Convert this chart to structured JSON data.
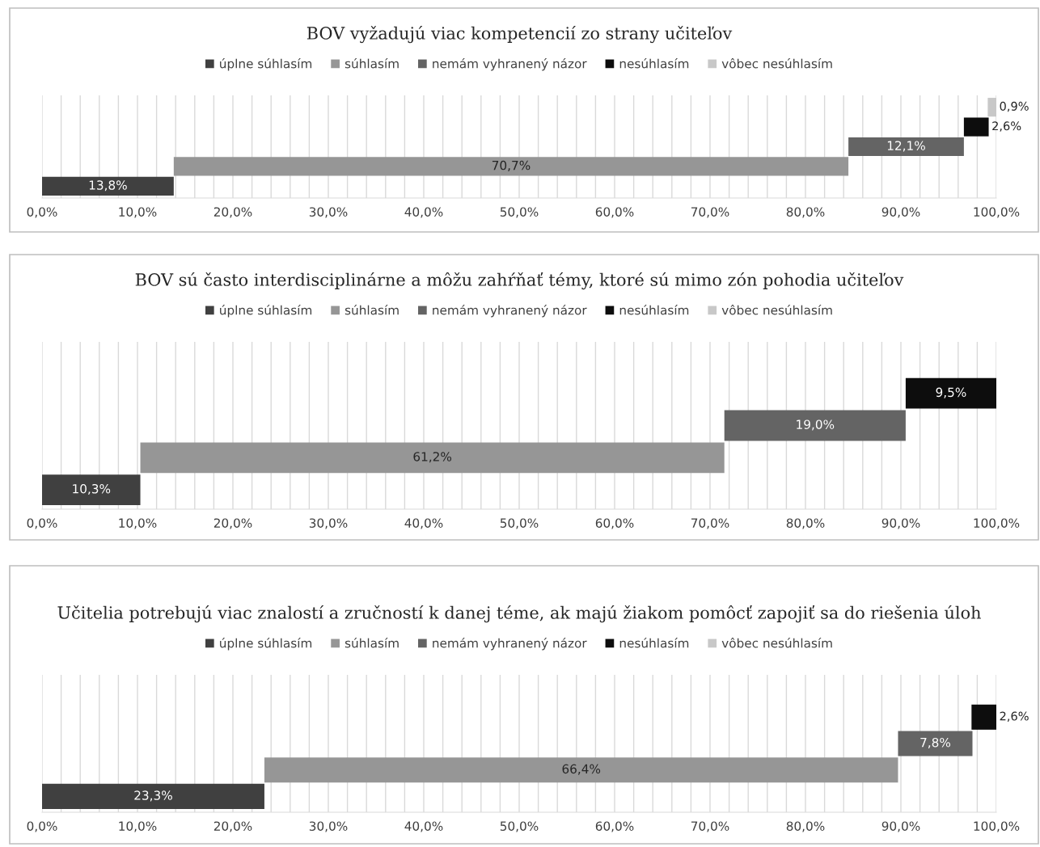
{
  "chart_data": [
    {
      "type": "bar",
      "orientation": "horizontal",
      "title": "BOV vyžadujú viac kompetencií zo strany učiteľov",
      "categories": [
        null,
        null,
        null,
        null,
        null
      ],
      "series": [
        {
          "name": "úplne súhlasím",
          "color": "#404040",
          "values": [
            null,
            null,
            null,
            null,
            13.8
          ],
          "base": [
            null,
            null,
            null,
            null,
            0
          ],
          "value_labels": [
            null,
            null,
            null,
            null,
            "13,8%"
          ]
        },
        {
          "name": "súhlasím",
          "color": "#969696",
          "values": [
            null,
            null,
            null,
            70.7,
            null
          ],
          "base": [
            null,
            null,
            null,
            13.8,
            null
          ],
          "value_labels": [
            null,
            null,
            null,
            "70,7%",
            null
          ]
        },
        {
          "name": "nemám vyhranený názor",
          "color": "#646464",
          "values": [
            null,
            null,
            12.1,
            null,
            null
          ],
          "base": [
            null,
            null,
            84.5,
            null,
            null
          ],
          "value_labels": [
            null,
            null,
            "12,1%",
            null,
            null
          ]
        },
        {
          "name": "nesúhlasím",
          "color": "#0d0d0d",
          "values": [
            null,
            2.6,
            null,
            null,
            null
          ],
          "base": [
            null,
            96.6,
            null,
            null,
            null
          ],
          "value_labels": [
            null,
            "2,6%",
            null,
            null,
            null
          ]
        },
        {
          "name": "vôbec nesúhlasím",
          "color": "#c8c8c8",
          "values": [
            0.9,
            null,
            null,
            null,
            null
          ],
          "base": [
            99.1,
            null,
            null,
            null,
            null
          ],
          "value_labels": [
            "0,9%",
            null,
            null,
            null,
            null
          ]
        }
      ],
      "xlim": [
        0,
        100
      ],
      "xticks": [
        {
          "value": 0,
          "label": "0,0%"
        },
        {
          "value": 2,
          "label": null
        },
        {
          "value": 4,
          "label": null
        },
        {
          "value": 6,
          "label": null
        },
        {
          "value": 8,
          "label": null
        },
        {
          "value": 10,
          "label": "10,0%"
        },
        {
          "value": 12,
          "label": null
        },
        {
          "value": 14,
          "label": null
        },
        {
          "value": 16,
          "label": null
        },
        {
          "value": 18,
          "label": null
        },
        {
          "value": 20,
          "label": "20,0%"
        },
        {
          "value": 22,
          "label": null
        },
        {
          "value": 24,
          "label": null
        },
        {
          "value": 26,
          "label": null
        },
        {
          "value": 28,
          "label": null
        },
        {
          "value": 30,
          "label": "30,0%"
        },
        {
          "value": 32,
          "label": null
        },
        {
          "value": 34,
          "label": null
        },
        {
          "value": 36,
          "label": null
        },
        {
          "value": 38,
          "label": null
        },
        {
          "value": 40,
          "label": "40,0%"
        },
        {
          "value": 42,
          "label": null
        },
        {
          "value": 44,
          "label": null
        },
        {
          "value": 46,
          "label": null
        },
        {
          "value": 48,
          "label": null
        },
        {
          "value": 50,
          "label": "50,0%"
        },
        {
          "value": 52,
          "label": null
        },
        {
          "value": 54,
          "label": null
        },
        {
          "value": 56,
          "label": null
        },
        {
          "value": 58,
          "label": null
        },
        {
          "value": 60,
          "label": "60,0%"
        },
        {
          "value": 62,
          "label": null
        },
        {
          "value": 64,
          "label": null
        },
        {
          "value": 66,
          "label": null
        },
        {
          "value": 68,
          "label": null
        },
        {
          "value": 70,
          "label": "70,0%"
        },
        {
          "value": 72,
          "label": null
        },
        {
          "value": 74,
          "label": null
        },
        {
          "value": 76,
          "label": null
        },
        {
          "value": 78,
          "label": null
        },
        {
          "value": 80,
          "label": "80,0%"
        },
        {
          "value": 82,
          "label": null
        },
        {
          "value": 84,
          "label": null
        },
        {
          "value": 86,
          "label": null
        },
        {
          "value": 88,
          "label": null
        },
        {
          "value": 90,
          "label": "90,0%"
        },
        {
          "value": 92,
          "label": null
        },
        {
          "value": 94,
          "label": null
        },
        {
          "value": 96,
          "label": null
        },
        {
          "value": 98,
          "label": null
        },
        {
          "value": 100,
          "label": "100,0%"
        }
      ],
      "grid": "x",
      "legend": "top",
      "tick_labels": "x"
    },
    {
      "type": "bar",
      "orientation": "horizontal",
      "title": "BOV sú často interdisciplinárne a môžu zahŕňať témy, ktoré sú mimo zón pohodia učiteľov",
      "categories": [
        null,
        null,
        null,
        null,
        null
      ],
      "series": [
        {
          "name": "úplne súhlasím",
          "color": "#404040",
          "values": [
            null,
            null,
            null,
            null,
            10.3
          ],
          "base": [
            null,
            null,
            null,
            null,
            0
          ],
          "value_labels": [
            null,
            null,
            null,
            null,
            "10,3%"
          ]
        },
        {
          "name": "súhlasím",
          "color": "#969696",
          "values": [
            null,
            null,
            null,
            61.2,
            null
          ],
          "base": [
            null,
            null,
            null,
            10.3,
            null
          ],
          "value_labels": [
            null,
            null,
            null,
            "61,2%",
            null
          ]
        },
        {
          "name": "nemám vyhranený názor",
          "color": "#646464",
          "values": [
            null,
            null,
            19.0,
            null,
            null
          ],
          "base": [
            null,
            null,
            71.5,
            null,
            null
          ],
          "value_labels": [
            null,
            null,
            "19,0%",
            null,
            null
          ]
        },
        {
          "name": "nesúhlasím",
          "color": "#0d0d0d",
          "values": [
            null,
            9.5,
            null,
            null,
            null
          ],
          "base": [
            null,
            90.5,
            null,
            null,
            null
          ],
          "value_labels": [
            null,
            "9,5%",
            null,
            null,
            null
          ]
        },
        {
          "name": "vôbec nesúhlasím",
          "color": "#c8c8c8",
          "values": [
            null,
            null,
            null,
            null,
            null
          ]
        }
      ],
      "xlim": [
        0,
        100
      ],
      "xticks": [
        {
          "value": 0,
          "label": "0,0%"
        },
        {
          "value": 2,
          "label": null
        },
        {
          "value": 4,
          "label": null
        },
        {
          "value": 6,
          "label": null
        },
        {
          "value": 8,
          "label": null
        },
        {
          "value": 10,
          "label": "10,0%"
        },
        {
          "value": 12,
          "label": null
        },
        {
          "value": 14,
          "label": null
        },
        {
          "value": 16,
          "label": null
        },
        {
          "value": 18,
          "label": null
        },
        {
          "value": 20,
          "label": "20,0%"
        },
        {
          "value": 22,
          "label": null
        },
        {
          "value": 24,
          "label": null
        },
        {
          "value": 26,
          "label": null
        },
        {
          "value": 28,
          "label": null
        },
        {
          "value": 30,
          "label": "30,0%"
        },
        {
          "value": 32,
          "label": null
        },
        {
          "value": 34,
          "label": null
        },
        {
          "value": 36,
          "label": null
        },
        {
          "value": 38,
          "label": null
        },
        {
          "value": 40,
          "label": "40,0%"
        },
        {
          "value": 42,
          "label": null
        },
        {
          "value": 44,
          "label": null
        },
        {
          "value": 46,
          "label": null
        },
        {
          "value": 48,
          "label": null
        },
        {
          "value": 50,
          "label": "50,0%"
        },
        {
          "value": 52,
          "label": null
        },
        {
          "value": 54,
          "label": null
        },
        {
          "value": 56,
          "label": null
        },
        {
          "value": 58,
          "label": null
        },
        {
          "value": 60,
          "label": "60,0%"
        },
        {
          "value": 62,
          "label": null
        },
        {
          "value": 64,
          "label": null
        },
        {
          "value": 66,
          "label": null
        },
        {
          "value": 68,
          "label": null
        },
        {
          "value": 70,
          "label": "70,0%"
        },
        {
          "value": 72,
          "label": null
        },
        {
          "value": 74,
          "label": null
        },
        {
          "value": 76,
          "label": null
        },
        {
          "value": 78,
          "label": null
        },
        {
          "value": 80,
          "label": "80,0%"
        },
        {
          "value": 82,
          "label": null
        },
        {
          "value": 84,
          "label": null
        },
        {
          "value": 86,
          "label": null
        },
        {
          "value": 88,
          "label": null
        },
        {
          "value": 90,
          "label": "90,0%"
        },
        {
          "value": 92,
          "label": null
        },
        {
          "value": 94,
          "label": null
        },
        {
          "value": 96,
          "label": null
        },
        {
          "value": 98,
          "label": null
        },
        {
          "value": 100,
          "label": "100,0%"
        }
      ],
      "grid": "x",
      "legend": "top",
      "tick_labels": "x"
    },
    {
      "type": "bar",
      "orientation": "horizontal",
      "title": "Učitelia potrebujú viac znalostí a zručností k danej téme, ak majú žiakom pomôcť zapojiť sa do riešenia úloh",
      "categories": [
        null,
        null,
        null,
        null,
        null
      ],
      "series": [
        {
          "name": "úplne súhlasím",
          "color": "#404040",
          "values": [
            null,
            null,
            null,
            null,
            23.3
          ],
          "base": [
            null,
            null,
            null,
            null,
            0
          ],
          "value_labels": [
            null,
            null,
            null,
            null,
            "23,3%"
          ]
        },
        {
          "name": "súhlasím",
          "color": "#969696",
          "values": [
            null,
            null,
            null,
            66.4,
            null
          ],
          "base": [
            null,
            null,
            null,
            23.3,
            null
          ],
          "value_labels": [
            null,
            null,
            null,
            "66,4%",
            null
          ]
        },
        {
          "name": "nemám vyhranený názor",
          "color": "#646464",
          "values": [
            null,
            null,
            7.8,
            null,
            null
          ],
          "base": [
            null,
            null,
            89.7,
            null,
            null
          ],
          "value_labels": [
            null,
            null,
            "7,8%",
            null,
            null
          ]
        },
        {
          "name": "nesúhlasím",
          "color": "#0d0d0d",
          "values": [
            null,
            2.6,
            null,
            null,
            null
          ],
          "base": [
            null,
            97.4,
            null,
            null,
            null
          ],
          "value_labels": [
            null,
            "2,6%",
            null,
            null,
            null
          ]
        },
        {
          "name": "vôbec nesúhlasím",
          "color": "#c8c8c8",
          "values": [
            null,
            null,
            null,
            null,
            null
          ]
        }
      ],
      "xlim": [
        0,
        100
      ],
      "xticks": [
        {
          "value": 0,
          "label": "0,0%"
        },
        {
          "value": 2,
          "label": null
        },
        {
          "value": 4,
          "label": null
        },
        {
          "value": 6,
          "label": null
        },
        {
          "value": 8,
          "label": null
        },
        {
          "value": 10,
          "label": "10,0%"
        },
        {
          "value": 12,
          "label": null
        },
        {
          "value": 14,
          "label": null
        },
        {
          "value": 16,
          "label": null
        },
        {
          "value": 18,
          "label": null
        },
        {
          "value": 20,
          "label": "20,0%"
        },
        {
          "value": 22,
          "label": null
        },
        {
          "value": 24,
          "label": null
        },
        {
          "value": 26,
          "label": null
        },
        {
          "value": 28,
          "label": null
        },
        {
          "value": 30,
          "label": "30,0%"
        },
        {
          "value": 32,
          "label": null
        },
        {
          "value": 34,
          "label": null
        },
        {
          "value": 36,
          "label": null
        },
        {
          "value": 38,
          "label": null
        },
        {
          "value": 40,
          "label": "40,0%"
        },
        {
          "value": 42,
          "label": null
        },
        {
          "value": 44,
          "label": null
        },
        {
          "value": 46,
          "label": null
        },
        {
          "value": 48,
          "label": null
        },
        {
          "value": 50,
          "label": "50,0%"
        },
        {
          "value": 52,
          "label": null
        },
        {
          "value": 54,
          "label": null
        },
        {
          "value": 56,
          "label": null
        },
        {
          "value": 58,
          "label": null
        },
        {
          "value": 60,
          "label": "60,0%"
        },
        {
          "value": 62,
          "label": null
        },
        {
          "value": 64,
          "label": null
        },
        {
          "value": 66,
          "label": null
        },
        {
          "value": 68,
          "label": null
        },
        {
          "value": 70,
          "label": "70,0%"
        },
        {
          "value": 72,
          "label": null
        },
        {
          "value": 74,
          "label": null
        },
        {
          "value": 76,
          "label": null
        },
        {
          "value": 78,
          "label": null
        },
        {
          "value": 80,
          "label": "80,0%"
        },
        {
          "value": 82,
          "label": null
        },
        {
          "value": 84,
          "label": null
        },
        {
          "value": 86,
          "label": null
        },
        {
          "value": 88,
          "label": null
        },
        {
          "value": 90,
          "label": "90,0%"
        },
        {
          "value": 92,
          "label": null
        },
        {
          "value": 94,
          "label": null
        },
        {
          "value": 96,
          "label": null
        },
        {
          "value": 98,
          "label": null
        },
        {
          "value": 100,
          "label": "100,0%"
        }
      ],
      "grid": "x",
      "legend": "top",
      "tick_labels": "x"
    }
  ]
}
